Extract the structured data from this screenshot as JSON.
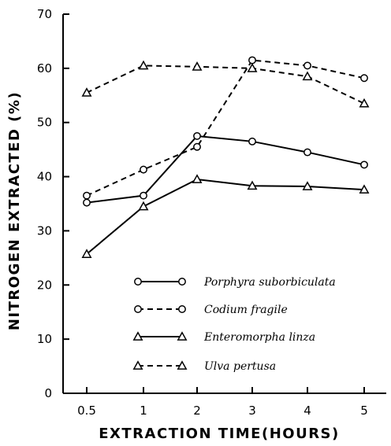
{
  "chart_data": {
    "type": "line",
    "xlabel": "EXTRACTION TIME(HOURS)",
    "ylabel": "NITROGEN EXTRACTED (%)",
    "x": [
      "0.5",
      "1",
      "2",
      "3",
      "4",
      "5"
    ],
    "ylim": [
      0,
      70
    ],
    "yticks": [
      "0",
      "10",
      "20",
      "30",
      "40",
      "50",
      "60",
      "70"
    ],
    "grid": false,
    "legend_position": "lower-right",
    "series": [
      {
        "name": "Porphyra suborbiculata",
        "marker": "circle",
        "dash": "solid",
        "values": [
          35.2,
          36.5,
          47.5,
          46.5,
          44.5,
          42.2
        ]
      },
      {
        "name": "Codium fragile",
        "marker": "circle",
        "dash": "dashed",
        "values": [
          36.5,
          41.3,
          45.5,
          61.5,
          60.5,
          58.2
        ]
      },
      {
        "name": "Enteromorpha linza",
        "marker": "triangle",
        "dash": "solid",
        "values": [
          25.7,
          34.5,
          39.5,
          38.3,
          38.2,
          37.6
        ]
      },
      {
        "name": "Ulva pertusa",
        "marker": "triangle",
        "dash": "dashed",
        "values": [
          55.5,
          60.5,
          60.3,
          60.0,
          58.5,
          53.5
        ]
      }
    ]
  }
}
